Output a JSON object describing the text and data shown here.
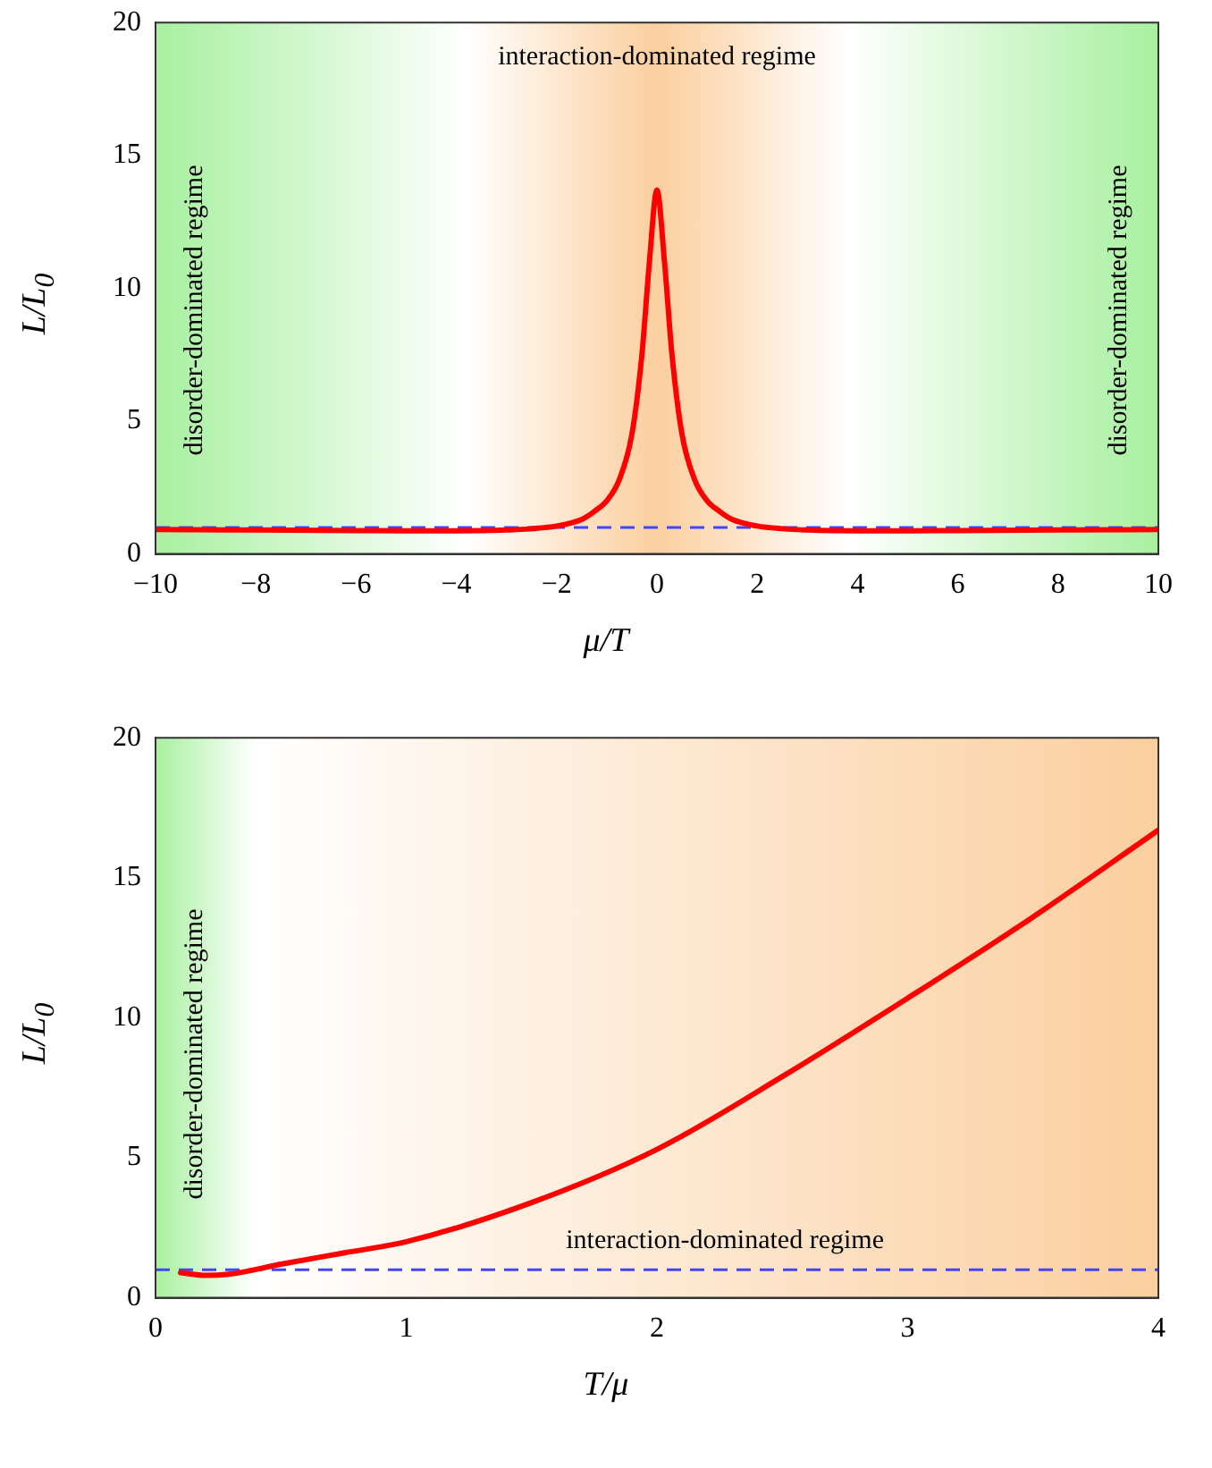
{
  "chart_data": [
    {
      "type": "line",
      "xlabel": "μ/T",
      "ylabel": "L/L$_{0}$",
      "xlim": [
        -10,
        10
      ],
      "ylim": [
        0,
        20
      ],
      "xticks": [
        {
          "value": -10,
          "label": "−10"
        },
        {
          "value": -8,
          "label": "−8"
        },
        {
          "value": -6,
          "label": "−6"
        },
        {
          "value": -4,
          "label": "−4"
        },
        {
          "value": -2,
          "label": "−2"
        },
        0,
        2,
        4,
        6,
        8,
        10
      ],
      "yticks": [
        0,
        5,
        10,
        15,
        20
      ],
      "grid": false,
      "legend": false,
      "marker": "none",
      "line_style": "solid",
      "x": [
        -10,
        -8,
        -6,
        -5,
        -4,
        -3,
        -2.5,
        -2,
        -1.5,
        -1.25,
        -1,
        -0.75,
        -0.5,
        -0.3,
        -0.15,
        0,
        0.15,
        0.3,
        0.5,
        0.75,
        1,
        1.25,
        1.5,
        2,
        2.5,
        3,
        4,
        5,
        6,
        8,
        10
      ],
      "series": [
        {
          "color": "#ff0000",
          "values": [
            0.92,
            0.9,
            0.88,
            0.87,
            0.87,
            0.9,
            0.95,
            1.05,
            1.3,
            1.6,
            2.0,
            2.8,
            4.5,
            7.5,
            11.0,
            13.7,
            11.0,
            7.5,
            4.5,
            2.8,
            2.0,
            1.6,
            1.3,
            1.05,
            0.95,
            0.9,
            0.87,
            0.87,
            0.88,
            0.9,
            0.92
          ]
        }
      ],
      "ref_lines": [
        {
          "axis": "y",
          "value": 1,
          "color": "#4444ff",
          "line_style": "dashed"
        }
      ],
      "bands": [
        {
          "axis": "x",
          "from": -10,
          "to": -3.8,
          "label": "disorder-dominated regime",
          "color": "#a8f0a0"
        },
        {
          "axis": "x",
          "from": -3.8,
          "to": 3.8,
          "label": "interaction-dominated regime",
          "color": "#fbcf9f"
        },
        {
          "axis": "x",
          "from": 3.8,
          "to": 10,
          "label": "disorder-dominated regime",
          "color": "#a8f0a0"
        }
      ]
    },
    {
      "type": "line",
      "xlabel": "T/μ",
      "ylabel": "L/L$_{0}$",
      "xlim": [
        0,
        4
      ],
      "ylim": [
        0,
        20
      ],
      "xticks": [
        0,
        1,
        2,
        3,
        4
      ],
      "yticks": [
        0,
        5,
        10,
        15,
        20
      ],
      "grid": false,
      "legend": false,
      "marker": "none",
      "line_style": "solid",
      "x": [
        0.1,
        0.2,
        0.3,
        0.5,
        0.75,
        1,
        1.5,
        2,
        2.5,
        3,
        3.5,
        4
      ],
      "series": [
        {
          "color": "#ff0000",
          "values": [
            0.9,
            0.8,
            0.85,
            1.2,
            1.6,
            2.0,
            3.4,
            5.3,
            7.9,
            10.7,
            13.6,
            16.7
          ]
        }
      ],
      "ref_lines": [
        {
          "axis": "y",
          "value": 1,
          "color": "#4444ff",
          "line_style": "dashed"
        }
      ],
      "bands": [
        {
          "axis": "x",
          "from": 0,
          "to": 0.4,
          "label": "disorder-dominated regime",
          "color": "#a8f0a0"
        },
        {
          "axis": "x",
          "from": 0.4,
          "to": 4,
          "label": "interaction-dominated regime",
          "color": "#fbcf9f"
        }
      ]
    }
  ]
}
